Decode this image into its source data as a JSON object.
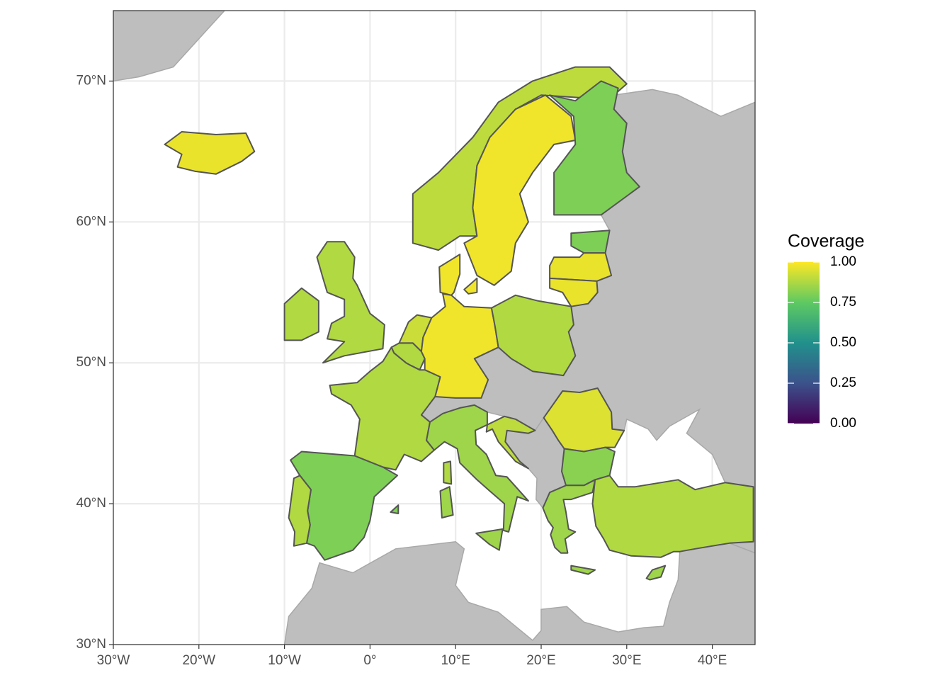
{
  "chart_data": {
    "type": "choropleth",
    "xlim": [
      -30,
      45
    ],
    "ylim": [
      30,
      75
    ],
    "xticks": [
      {
        "value": -30,
        "label": "30°W"
      },
      {
        "value": -20,
        "label": "20°W"
      },
      {
        "value": -10,
        "label": "10°W"
      },
      {
        "value": 0,
        "label": "0°"
      },
      {
        "value": 10,
        "label": "10°E"
      },
      {
        "value": 20,
        "label": "20°E"
      },
      {
        "value": 30,
        "label": "30°E"
      },
      {
        "value": 40,
        "label": "40°E"
      }
    ],
    "yticks": [
      {
        "value": 30,
        "label": "30°N"
      },
      {
        "value": 40,
        "label": "40°N"
      },
      {
        "value": 50,
        "label": "50°N"
      },
      {
        "value": 60,
        "label": "60°N"
      },
      {
        "value": 70,
        "label": "70°N"
      }
    ],
    "grid": true,
    "colorscale": "viridis",
    "values": [
      0.97,
      0.9,
      0.98,
      0.8,
      0.8,
      0.97,
      0.97,
      0.98,
      0.88,
      0.88,
      0.92,
      0.88,
      0.98,
      0.88,
      0.88,
      0.8,
      0.88,
      0.85,
      0.9,
      0.95,
      0.82,
      0.85,
      0.88,
      0.85
    ],
    "legend": {
      "title": "Coverage",
      "lim": [
        0,
        1
      ],
      "ticks": [
        {
          "value": 0,
          "label": "0.00"
        },
        {
          "value": 0.25,
          "label": "0.25"
        },
        {
          "value": 0.5,
          "label": "0.50"
        },
        {
          "value": 0.75,
          "label": "0.75"
        },
        {
          "value": 1,
          "label": "1.00"
        }
      ]
    }
  }
}
